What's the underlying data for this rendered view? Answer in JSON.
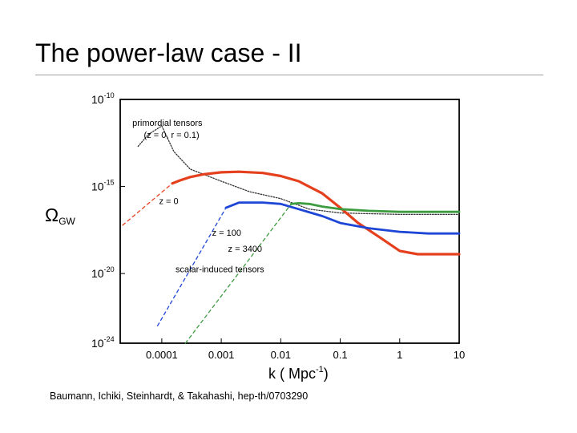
{
  "slide": {
    "title": "The power-law case - II",
    "citation": "Baumann, Ichiki, Steinhardt, & Takahashi, hep-th/0703290"
  },
  "chart_data": {
    "type": "line",
    "title": "",
    "xlabel": "k ( Mpc",
    "xlabel_sup": "-1",
    "xlabel_close": ")",
    "ylabel": "Ω",
    "ylabel_sub": "GW",
    "xscale": "log",
    "yscale": "log",
    "xlim": [
      2e-05,
      10
    ],
    "ylim": [
      1e-24,
      1e-10
    ],
    "x_ticks": [
      {
        "value": 0.0001,
        "label": "0.0001"
      },
      {
        "value": 0.001,
        "label": "0.001"
      },
      {
        "value": 0.01,
        "label": "0.01"
      },
      {
        "value": 0.1,
        "label": "0.1"
      },
      {
        "value": 1,
        "label": "1"
      },
      {
        "value": 10,
        "label": "10"
      }
    ],
    "y_ticks": [
      {
        "value": 1e-10,
        "base": "10",
        "exp": "-10"
      },
      {
        "value": 1e-15,
        "base": "10",
        "exp": "-15"
      },
      {
        "value": 1e-20,
        "base": "10",
        "exp": "-20"
      },
      {
        "value": 1e-24,
        "base": "10",
        "exp": "-24"
      }
    ],
    "annotations": [
      {
        "text": "primordial tensors",
        "k": 3.2e-05,
        "omega": 3e-12
      },
      {
        "text": "(z = 0, r = 0.1)",
        "k": 5e-05,
        "omega": 6e-13
      },
      {
        "text": "z = 0",
        "k": 9e-05,
        "omega": 1e-16
      },
      {
        "text": "z = 100",
        "k": 0.0007,
        "omega": 1.5e-18
      },
      {
        "text": "z = 3400",
        "k": 0.0013,
        "omega": 1.8e-19
      },
      {
        "text": "scalar-induced tensors",
        "k": 0.00017,
        "omega": 1.2e-20
      }
    ],
    "series": [
      {
        "name": "primordial tensors",
        "color": "#333333",
        "dash": "1.5 1.8",
        "width": 1.3,
        "k": [
          4e-05,
          6e-05,
          0.0001,
          0.00016,
          0.0003,
          0.001,
          0.003,
          0.01,
          0.03,
          0.1,
          1,
          10
        ],
        "omega": [
          2e-13,
          1e-12,
          3e-12,
          1e-13,
          1e-14,
          2e-15,
          5e-16,
          2e-16,
          5e-17,
          3e-17,
          2.5e-17,
          2.5e-17
        ]
      },
      {
        "name": "z = 0",
        "color": "#e5401e",
        "dash": "",
        "width": 3.2,
        "k": [
          0.00015,
          0.0002,
          0.0003,
          0.0005,
          0.001,
          0.002,
          0.005,
          0.01,
          0.02,
          0.05,
          0.1,
          0.2,
          0.5,
          1,
          2,
          10
        ],
        "omega": [
          1.5e-15,
          2.2e-15,
          3.5e-15,
          5e-15,
          6.5e-15,
          7e-15,
          6e-15,
          4e-15,
          2e-15,
          4e-16,
          6e-17,
          8e-18,
          1e-18,
          2e-19,
          1.3e-19,
          1.3e-19
        ]
      },
      {
        "name": "z = 100",
        "color": "#1d46d6",
        "dash": "",
        "width": 2.8,
        "k": [
          0.0012,
          0.002,
          0.005,
          0.01,
          0.02,
          0.05,
          0.1,
          0.3,
          1,
          3,
          10
        ],
        "omega": [
          6e-17,
          1.2e-16,
          1.2e-16,
          1e-16,
          5e-17,
          2e-17,
          8e-18,
          4e-18,
          2.5e-18,
          2e-18,
          2e-18
        ]
      },
      {
        "name": "z = 3400",
        "color": "#3e9c40",
        "dash": "",
        "width": 2.8,
        "k": [
          0.015,
          0.02,
          0.03,
          0.05,
          0.1,
          0.3,
          1,
          3,
          10
        ],
        "omega": [
          1e-16,
          1.1e-16,
          1e-16,
          7e-17,
          5e-17,
          4e-17,
          3.5e-17,
          3.5e-17,
          3.5e-17
        ]
      },
      {
        "name": "scalar-induced z = 0",
        "color": "#e5401e",
        "dash": "4 4",
        "width": 1.3,
        "k": [
          2.2e-05,
          0.00015
        ],
        "omega": [
          6e-18,
          1.5e-15
        ]
      },
      {
        "name": "scalar-induced z = 100",
        "color": "#1d46d6",
        "dash": "4 4",
        "width": 1.3,
        "k": [
          8.5e-05,
          0.0012
        ],
        "omega": [
          1e-23,
          6e-17
        ]
      },
      {
        "name": "scalar-induced z = 3400",
        "color": "#3e9c40",
        "dash": "4 4",
        "width": 1.3,
        "k": [
          0.00025,
          0.015
        ],
        "omega": [
          1e-24,
          1e-16
        ]
      }
    ]
  }
}
